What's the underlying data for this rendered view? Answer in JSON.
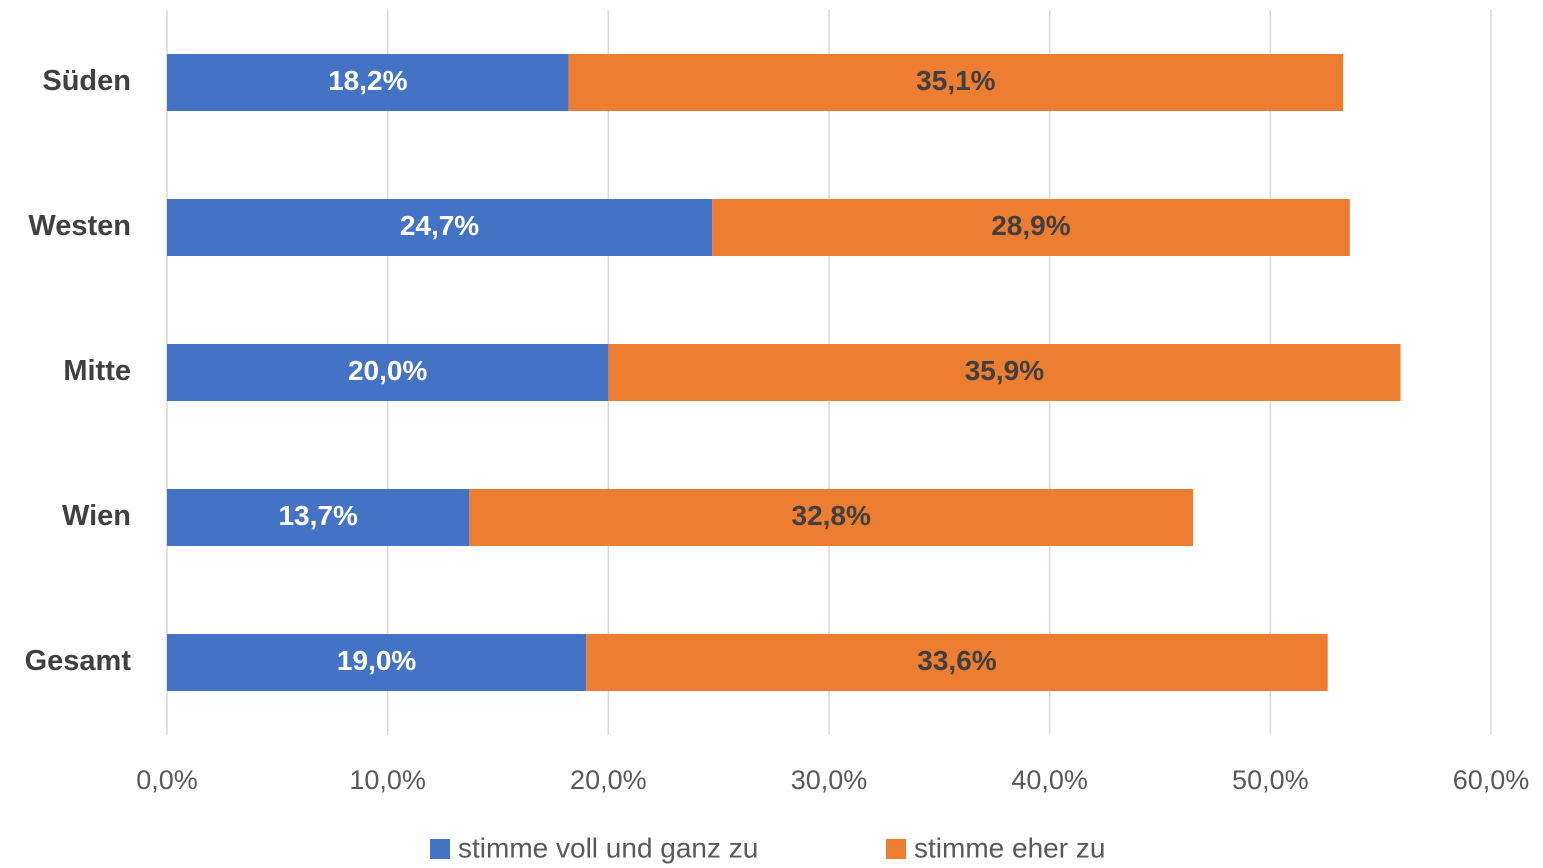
{
  "chart_data": {
    "type": "stacked_bar_horizontal",
    "categories": [
      "Süden",
      "Westen",
      "Mitte",
      "Wien",
      "Gesamt"
    ],
    "series": [
      {
        "name": "stimme voll und ganz zu",
        "color": "#4472c4",
        "values": [
          18.2,
          24.7,
          20.0,
          13.7,
          19.0
        ],
        "value_labels": [
          "18,2%",
          "24,7%",
          "20,0%",
          "13,7%",
          "19,0%"
        ],
        "label_color": "#ffffff"
      },
      {
        "name": "stimme eher zu",
        "color": "#ed7d31",
        "values": [
          35.1,
          28.9,
          35.9,
          32.8,
          33.6
        ],
        "value_labels": [
          "35,1%",
          "28,9%",
          "35,9%",
          "32,8%",
          "33,6%"
        ],
        "label_color": "#404040"
      }
    ],
    "xlim": [
      0,
      60
    ],
    "xticks": [
      {
        "value": 0,
        "label": "0,0%"
      },
      {
        "value": 10,
        "label": "10,0%"
      },
      {
        "value": 20,
        "label": "20,0%"
      },
      {
        "value": 30,
        "label": "30,0%"
      },
      {
        "value": 40,
        "label": "40,0%"
      },
      {
        "value": 50,
        "label": "50,0%"
      },
      {
        "value": 60,
        "label": "60,0%"
      }
    ],
    "grid": true,
    "legend": "bottom"
  }
}
